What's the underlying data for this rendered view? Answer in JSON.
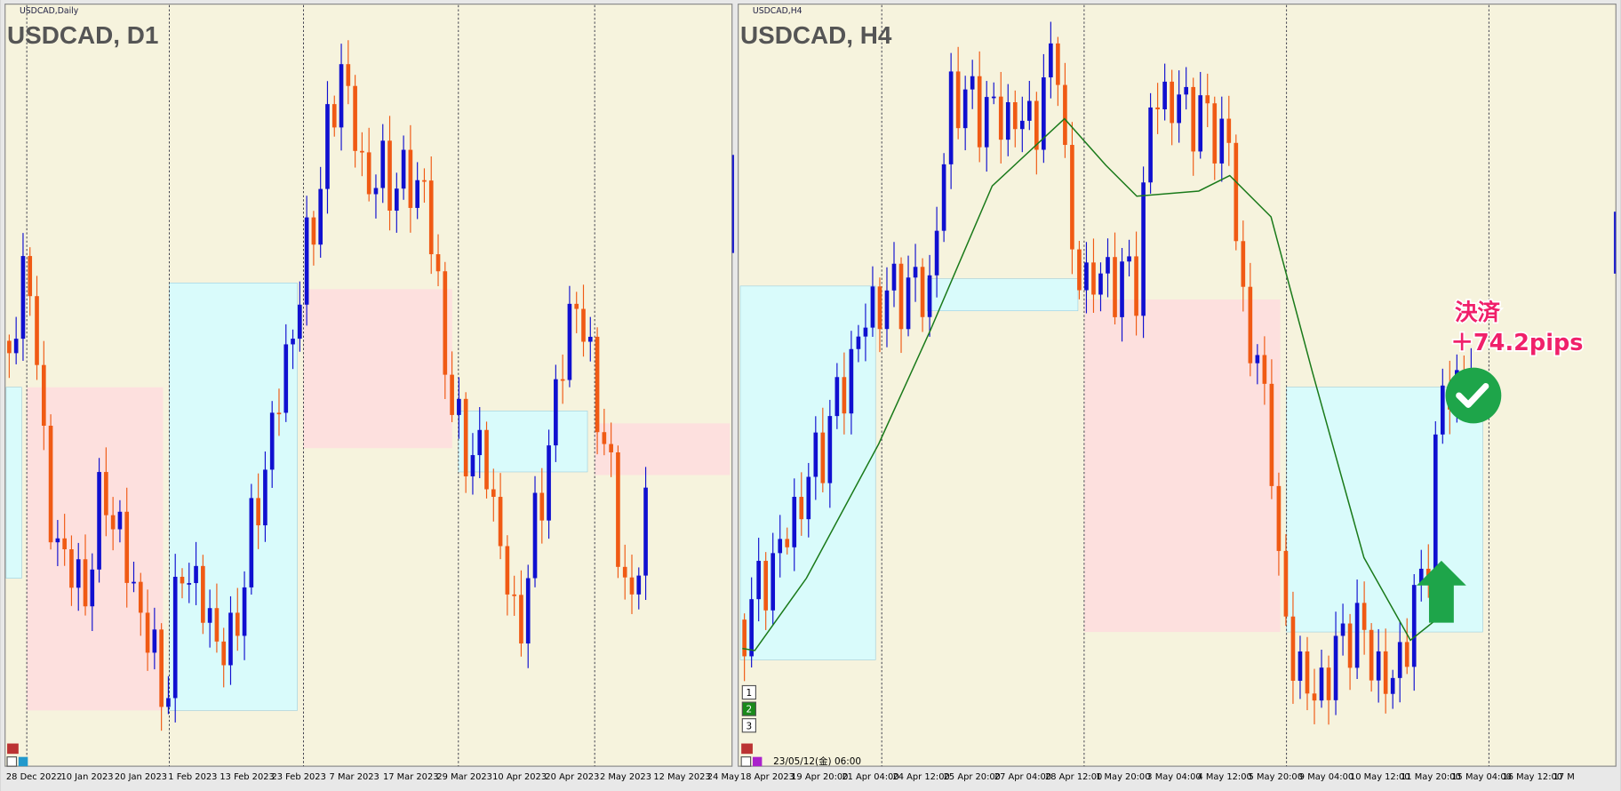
{
  "left_panel": {
    "symbol_label": "USDCAD,Daily",
    "title": "USDCAD, D1",
    "x_labels": [
      "28 Dec 2022",
      "10 Jan 2023",
      "20 Jan 2023",
      "1 Feb 2023",
      "13 Feb 2023",
      "23 Feb 2023",
      "7 Mar 2023",
      "17 Mar 2023",
      "29 Mar 2023",
      "10 Apr 2023",
      "20 Apr 2023",
      "2 May 2023",
      "12 May 2023",
      "24 May"
    ]
  },
  "right_panel": {
    "symbol_label": "USDCAD,H4",
    "title": "USDCAD, H4",
    "x_labels": [
      "18 Apr 2023",
      "19 Apr 20:00",
      "21 Apr 04:00",
      "24 Apr 12:00",
      "25 Apr 20:00",
      "27 Apr 04:00",
      "28 Apr 12:00",
      "1 May 20:00",
      "3 May 04:00",
      "4 May 12:00",
      "5 May 20:00",
      "9 May 04:00",
      "10 May 12:00",
      "11 May 20:00",
      "15 May 04:00",
      "16 May 12:00",
      "17 M"
    ],
    "buttons": [
      "1",
      "2",
      "3"
    ],
    "timestamp": "23/05/12(金) 06:00"
  },
  "annotation": {
    "line1": "決済",
    "line2": "＋74.2pips"
  }
}
